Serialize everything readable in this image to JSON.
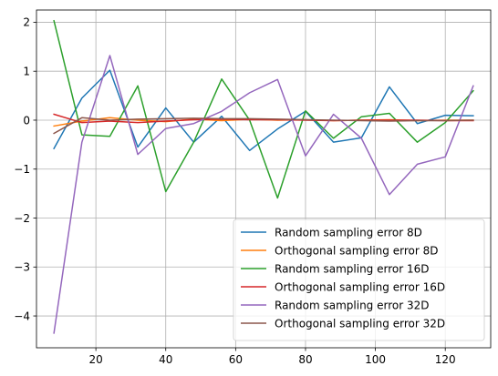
{
  "chart_data": {
    "type": "line",
    "title": "",
    "xlabel": "",
    "ylabel": "",
    "xlim": [
      3,
      133
    ],
    "ylim": [
      -4.65,
      2.25
    ],
    "xticks": [
      20,
      40,
      60,
      80,
      100,
      120
    ],
    "yticks": [
      -4,
      -3,
      -2,
      -1,
      0,
      1,
      2
    ],
    "xtick_labels": [
      "20",
      "40",
      "60",
      "80",
      "100",
      "120"
    ],
    "ytick_labels": [
      "−4",
      "−3",
      "−2",
      "−1",
      "0",
      "1",
      "2"
    ],
    "grid": true,
    "legend_position": "lower-right",
    "x": [
      8,
      16,
      24,
      32,
      40,
      48,
      56,
      64,
      72,
      80,
      88,
      96,
      104,
      112,
      120,
      128
    ],
    "series": [
      {
        "name": "Random sampling error 8D",
        "color": "#1f77b4",
        "values": [
          -0.58,
          0.45,
          1.02,
          -0.55,
          0.25,
          -0.45,
          0.08,
          -0.62,
          -0.18,
          0.18,
          -0.45,
          -0.36,
          0.68,
          -0.07,
          0.1,
          0.09
        ]
      },
      {
        "name": "Orthogonal sampling error 8D",
        "color": "#ff7f0e",
        "values": [
          -0.12,
          -0.02,
          0.05,
          0.0,
          -0.03,
          0.02,
          -0.01,
          0.02,
          0.0,
          0.01,
          -0.01,
          0.0,
          0.01,
          -0.01,
          0.0,
          0.0
        ]
      },
      {
        "name": "Random sampling error 16D",
        "color": "#2ca02c",
        "values": [
          2.03,
          -0.3,
          -0.33,
          0.7,
          -1.46,
          -0.45,
          0.84,
          0.0,
          -1.59,
          0.19,
          -0.37,
          0.07,
          0.14,
          -0.45,
          -0.05,
          0.6
        ]
      },
      {
        "name": "Orthogonal sampling error 16D",
        "color": "#d62728",
        "values": [
          0.12,
          -0.05,
          -0.02,
          -0.05,
          -0.02,
          0.01,
          0.02,
          0.01,
          0.01,
          0.0,
          -0.01,
          0.0,
          0.0,
          0.0,
          -0.01,
          -0.01
        ]
      },
      {
        "name": "Random sampling error 32D",
        "color": "#9467bd",
        "values": [
          -4.35,
          -0.45,
          1.32,
          -0.7,
          -0.17,
          -0.07,
          0.18,
          0.56,
          0.83,
          -0.73,
          0.12,
          -0.37,
          -1.52,
          -0.9,
          -0.75,
          0.7
        ]
      },
      {
        "name": "Orthogonal sampling error 32D",
        "color": "#8c564b",
        "values": [
          -0.27,
          0.05,
          0.0,
          0.02,
          0.03,
          0.04,
          0.03,
          0.03,
          0.02,
          0.01,
          0.0,
          -0.01,
          -0.02,
          -0.01,
          -0.01,
          0.0
        ]
      }
    ]
  }
}
